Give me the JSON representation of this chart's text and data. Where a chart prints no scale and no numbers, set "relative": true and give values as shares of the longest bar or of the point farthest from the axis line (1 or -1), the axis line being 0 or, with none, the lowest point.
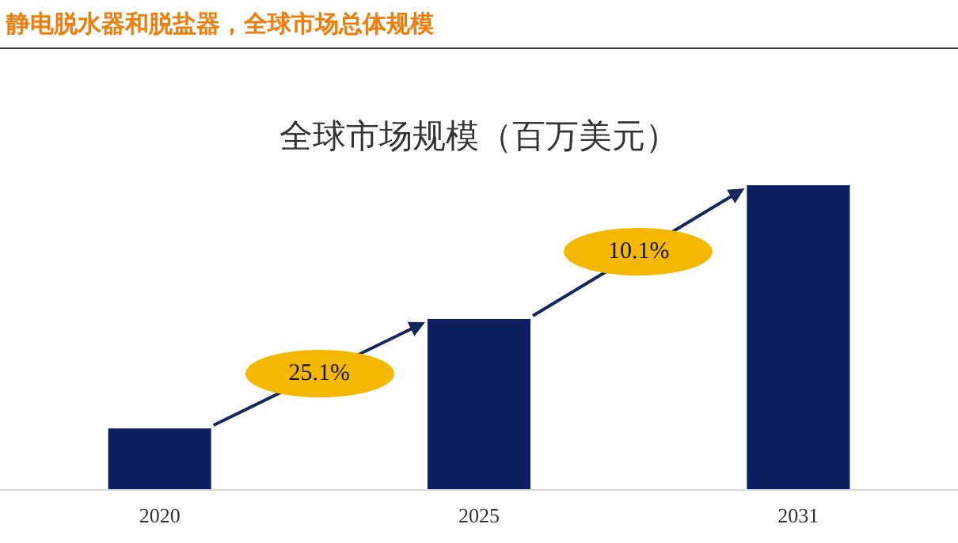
{
  "chart_data": {
    "type": "bar",
    "title": "静电脱水器和脱盐器，全球市场总体规模",
    "subtitle": "全球市场规模（百万美元）",
    "categories": [
      "2020",
      "2025",
      "2031"
    ],
    "values": [
      0.2,
      0.56,
      1
    ],
    "color": "#0c1f5e",
    "relative": true,
    "annotations": [
      "25.1%",
      "10.1%"
    ]
  }
}
